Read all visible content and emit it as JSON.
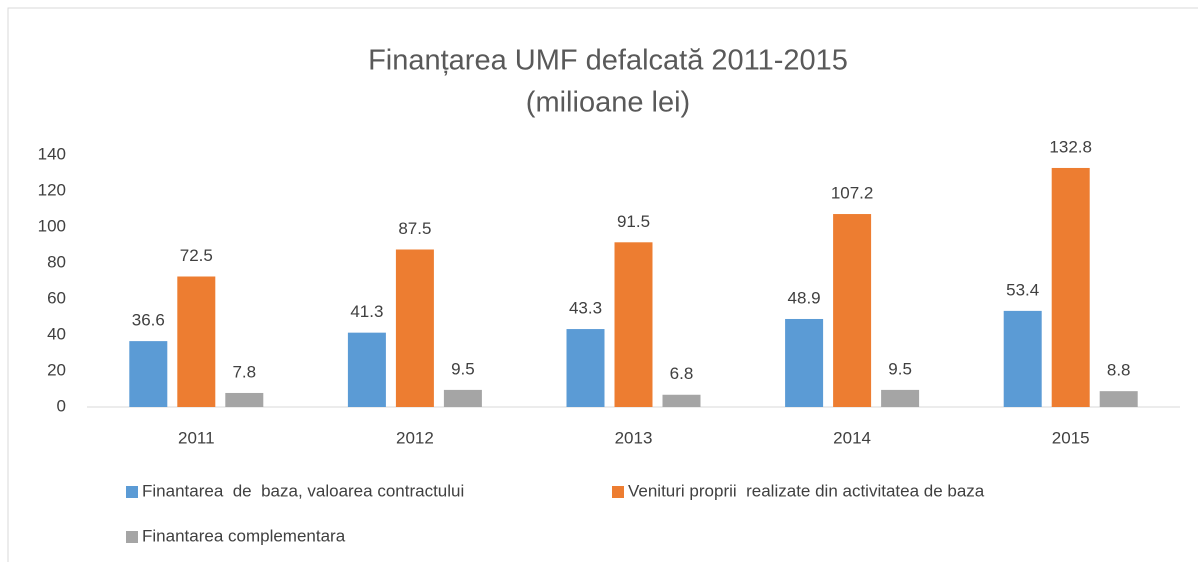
{
  "chart_data": {
    "type": "bar",
    "title": "Finanțarea UMF defalcată 2011-2015",
    "subtitle": "(milioane lei)",
    "categories": [
      "2011",
      "2012",
      "2013",
      "2014",
      "2015"
    ],
    "series": [
      {
        "name": "Finantarea  de  baza, valoarea contractului",
        "color": "#5b9bd5",
        "values": [
          36.6,
          41.3,
          43.3,
          48.9,
          53.4
        ]
      },
      {
        "name": "Venituri proprii  realizate din activitatea de baza",
        "color": "#ed7d31",
        "values": [
          72.5,
          87.5,
          91.5,
          107.2,
          132.8
        ]
      },
      {
        "name": "Finantarea complementara",
        "color": "#a5a5a5",
        "values": [
          7.8,
          9.5,
          6.8,
          9.5,
          8.8
        ]
      }
    ],
    "ylim": [
      0,
      140
    ],
    "yticks": [
      0,
      20,
      40,
      60,
      80,
      100,
      120,
      140
    ],
    "grid": false,
    "legend": "bottom"
  }
}
